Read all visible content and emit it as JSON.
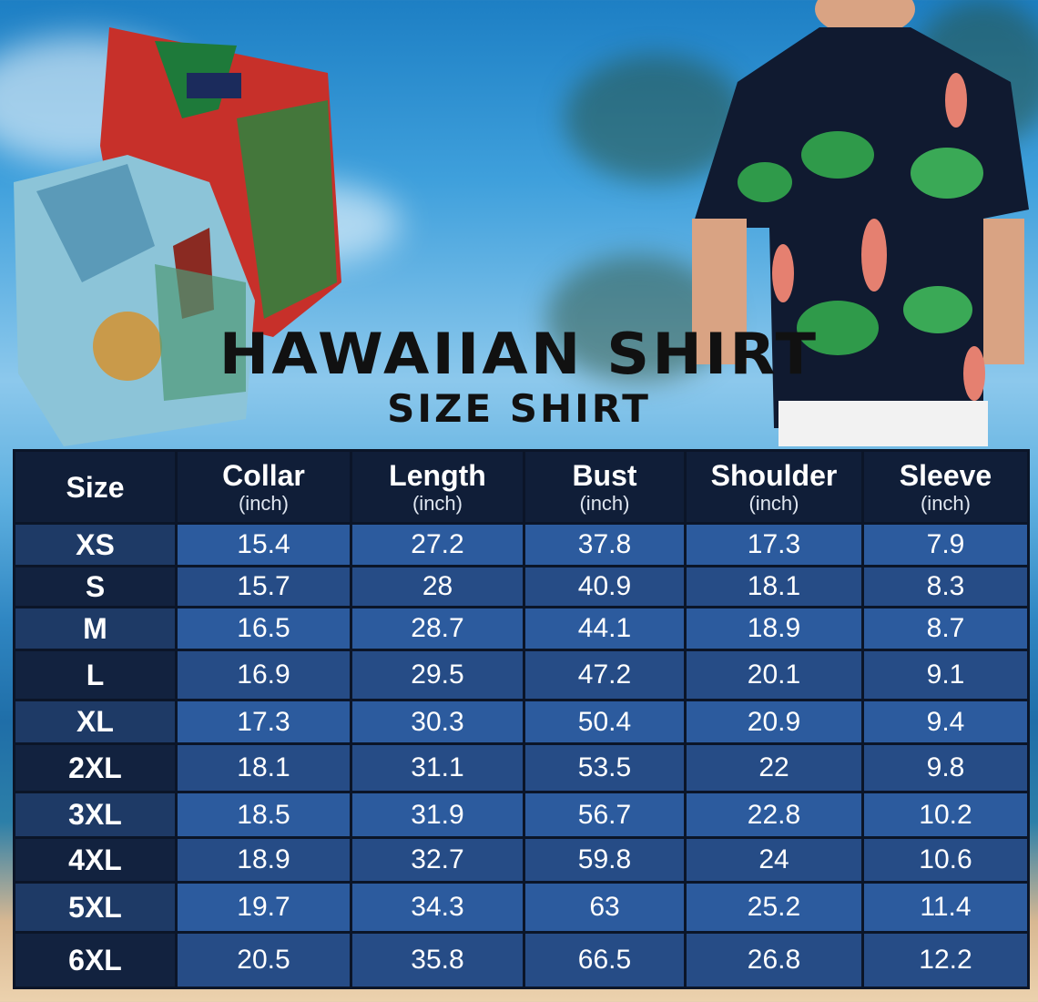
{
  "title": "HAWAIIAN SHIRT",
  "subtitle": "SIZE SHIRT",
  "table": {
    "headers": [
      {
        "label": "Size",
        "unit": ""
      },
      {
        "label": "Collar",
        "unit": "(inch)"
      },
      {
        "label": "Length",
        "unit": "(inch)"
      },
      {
        "label": "Bust",
        "unit": "(inch)"
      },
      {
        "label": "Shoulder",
        "unit": "(inch)"
      },
      {
        "label": "Sleeve",
        "unit": "(inch)"
      }
    ],
    "rows": [
      [
        "XS",
        "15.4",
        "27.2",
        "37.8",
        "17.3",
        "7.9"
      ],
      [
        "S",
        "15.7",
        "28",
        "40.9",
        "18.1",
        "8.3"
      ],
      [
        "M",
        "16.5",
        "28.7",
        "44.1",
        "18.9",
        "8.7"
      ],
      [
        "L",
        "16.9",
        "29.5",
        "47.2",
        "20.1",
        "9.1"
      ],
      [
        "XL",
        "17.3",
        "30.3",
        "50.4",
        "20.9",
        "9.4"
      ],
      [
        "2XL",
        "18.1",
        "31.1",
        "53.5",
        "22",
        "9.8"
      ],
      [
        "3XL",
        "18.5",
        "31.9",
        "56.7",
        "22.8",
        "10.2"
      ],
      [
        "4XL",
        "18.9",
        "32.7",
        "59.8",
        "24",
        "10.6"
      ],
      [
        "5XL",
        "19.7",
        "34.3",
        "63",
        "25.2",
        "11.4"
      ],
      [
        "6XL",
        "20.5",
        "35.8",
        "66.5",
        "26.8",
        "12.2"
      ]
    ]
  },
  "colors": {
    "header_bg": "#101e38",
    "cell_light": "#2c5b9e",
    "cell_dark": "#264c86",
    "title": "#111111"
  }
}
